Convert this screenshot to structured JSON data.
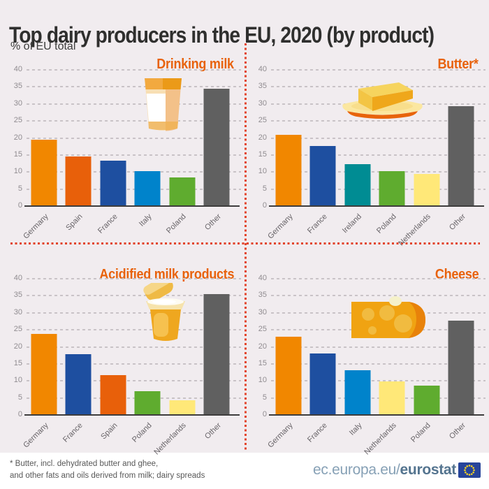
{
  "header": {
    "title": "Top dairy producers in the EU, 2020 (by product)",
    "subtitle": "% of EU total"
  },
  "country_colors": {
    "Germany": "#F18700",
    "Spain": "#E8600A",
    "France": "#1E4FA0",
    "Italy": "#0083CB",
    "Poland": "#5FAC2F",
    "Ireland": "#008C93",
    "Netherlands": "#FFE878",
    "Other": "#606060"
  },
  "chart_data": [
    {
      "type": "bar",
      "title": "Drinking milk",
      "icon": "milk-glass-icon",
      "categories": [
        "Germany",
        "Spain",
        "France",
        "Italy",
        "Poland",
        "Other"
      ],
      "values": [
        19.5,
        14.5,
        13.3,
        10.2,
        8.4,
        34.5
      ],
      "xlabel": "",
      "ylabel": "% of EU total",
      "ylim": [
        0,
        40
      ],
      "ytick_step": 5,
      "grid": true,
      "legend": "none"
    },
    {
      "type": "bar",
      "title": "Butter*",
      "icon": "butter-dish-icon",
      "categories": [
        "Germany",
        "France",
        "Ireland",
        "Poland",
        "Netherlands",
        "Other"
      ],
      "values": [
        21.0,
        17.7,
        12.4,
        10.3,
        9.4,
        29.3
      ],
      "xlabel": "",
      "ylabel": "% of EU total",
      "ylim": [
        0,
        40
      ],
      "ytick_step": 5,
      "grid": true,
      "legend": "none"
    },
    {
      "type": "bar",
      "title": "Acidified milk products",
      "icon": "yogurt-cup-icon",
      "categories": [
        "Germany",
        "France",
        "Spain",
        "Poland",
        "Netherlands",
        "Other"
      ],
      "values": [
        23.7,
        17.8,
        11.6,
        7.0,
        4.4,
        35.5
      ],
      "xlabel": "",
      "ylabel": "% of EU total",
      "ylim": [
        0,
        40
      ],
      "ytick_step": 5,
      "grid": true,
      "legend": "none"
    },
    {
      "type": "bar",
      "title": "Cheese",
      "icon": "cheese-wedge-icon",
      "categories": [
        "Germany",
        "France",
        "Italy",
        "Netherlands",
        "Poland",
        "Other"
      ],
      "values": [
        23.0,
        18.1,
        13.2,
        9.8,
        8.7,
        27.7
      ],
      "xlabel": "",
      "ylabel": "% of EU total",
      "ylim": [
        0,
        40
      ],
      "ytick_step": 5,
      "grid": true,
      "legend": "none"
    }
  ],
  "footer": {
    "footnote_line1": "* Butter, incl. dehydrated butter and ghee,",
    "footnote_line2": "and other fats and oils derived from milk; dairy spreads",
    "site_prefix": "ec.europa.eu/",
    "site_bold": "eurostat"
  },
  "colors": {
    "background": "#F1ECEF",
    "footer_background": "#FFFFFF",
    "title_text": "#2F2F2E",
    "chart_title_orange": "#E8620C",
    "divider_red": "#E2452B",
    "gridline": "#C9C3C7",
    "axis_line": "#3E3D3D",
    "tick_text": "#908C90",
    "category_text": "#686468",
    "footnote_text": "#585858",
    "logo_text": "#87A1B6",
    "logo_bold_text": "#54748F",
    "eu_flag_blue": "#27449A",
    "eu_flag_stars": "#FFD71E"
  }
}
